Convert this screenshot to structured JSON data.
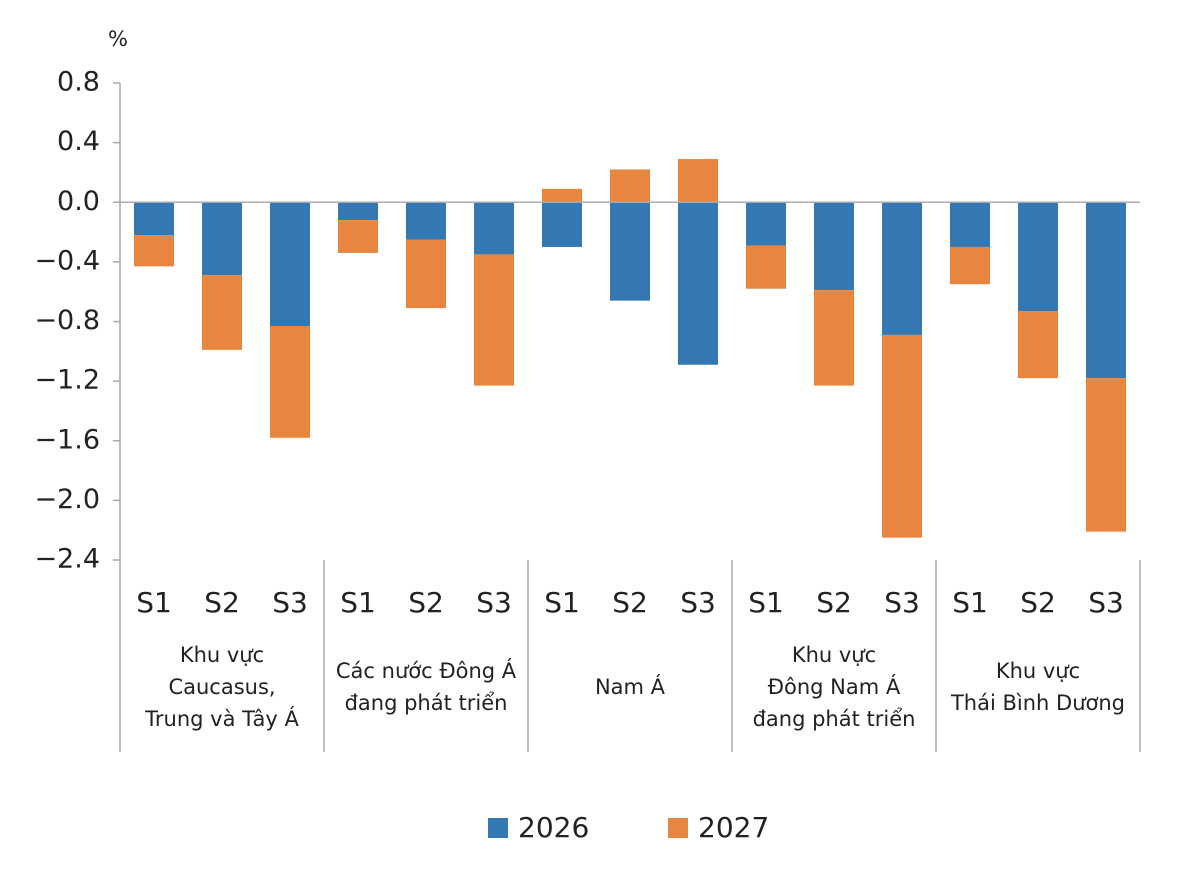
{
  "chart_data": {
    "type": "stacked-bar",
    "y_unit": "%",
    "categories": [
      "S1",
      "S2",
      "S3",
      "S1",
      "S2",
      "S3",
      "S1",
      "S2",
      "S3",
      "S1",
      "S2",
      "S3",
      "S1",
      "S2",
      "S3"
    ],
    "groups": [
      [
        "Khu vực",
        "Caucasus,",
        "Trung và Tây Á"
      ],
      [
        "Các nước Đông Á",
        "đang phát triển"
      ],
      [
        "Nam Á"
      ],
      [
        "Khu vực",
        "Đông Nam Á",
        "đang phát triển"
      ],
      [
        "Khu vực",
        "Thái Bình Dương"
      ]
    ],
    "series": [
      {
        "name": "2026",
        "color": "#3378b3",
        "values": [
          -0.22,
          -0.49,
          -0.83,
          -0.12,
          -0.25,
          -0.35,
          -0.3,
          -0.66,
          -1.09,
          -0.29,
          -0.59,
          -0.89,
          -0.3,
          -0.73,
          -1.18
        ]
      },
      {
        "name": "2027",
        "color": "#e8863f",
        "values": [
          -0.21,
          -0.5,
          -0.75,
          -0.22,
          -0.46,
          -0.88,
          0.09,
          0.22,
          0.29,
          -0.29,
          -0.64,
          -1.36,
          -0.25,
          -0.45,
          -1.03
        ]
      }
    ],
    "ylim": [
      -2.4,
      0.8
    ],
    "yticks": [
      0.8,
      0.4,
      {
        "value": 0,
        "label": "0.0"
      },
      {
        "value": -0.4,
        "label": "−0.4"
      },
      {
        "value": -0.8,
        "label": "−0.8"
      },
      {
        "value": -1.2,
        "label": "−1.2"
      },
      {
        "value": -1.6,
        "label": "−1.6"
      },
      {
        "value": -2.0,
        "label": "−2.0"
      },
      {
        "value": -2.4,
        "label": "−2.4"
      }
    ],
    "legend": "bottom"
  }
}
